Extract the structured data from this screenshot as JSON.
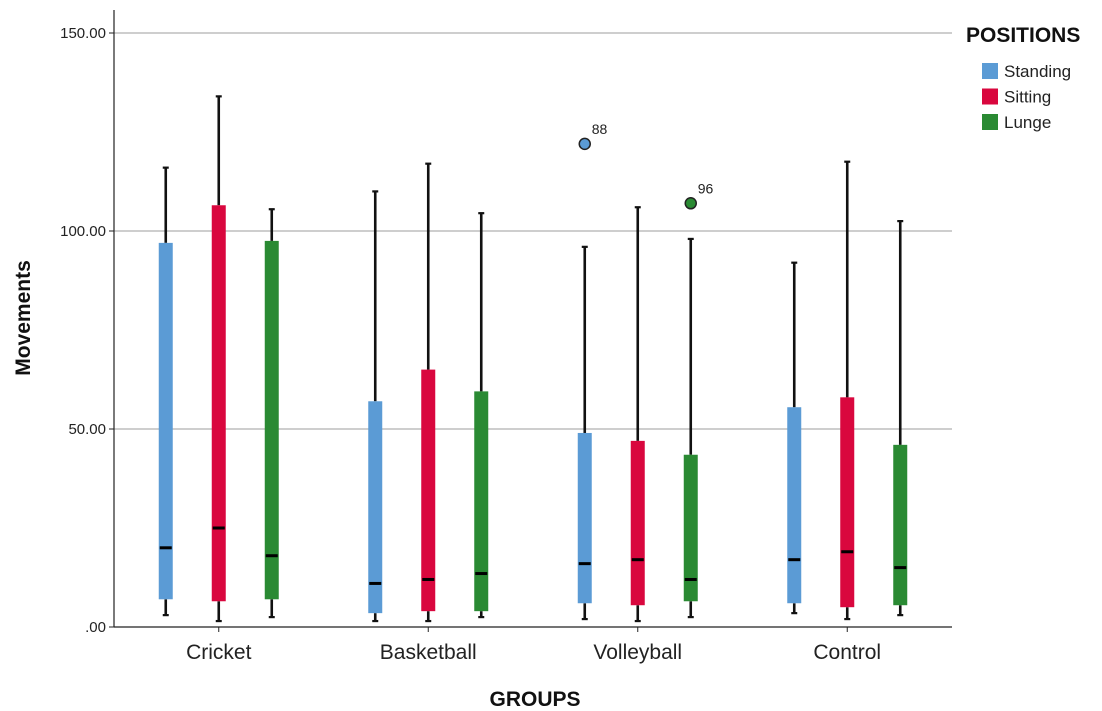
{
  "chart_data": {
    "type": "boxplot",
    "xlabel": "GROUPS",
    "ylabel": "Movements",
    "ylim": [
      0,
      150
    ],
    "yticks": [
      ".00",
      "50.00",
      "100.00",
      "150.00"
    ],
    "ytick_values": [
      0,
      50,
      100,
      150
    ],
    "grid": "horizontal",
    "categories": [
      "Cricket",
      "Basketball",
      "Volleyball",
      "Control"
    ],
    "legend": {
      "title": "POSITIONS",
      "placement": "top-right"
    },
    "series": [
      {
        "name": "Standing",
        "color": "#5b9bd5",
        "boxes": [
          {
            "min": 3,
            "q1": 7,
            "median": 20,
            "q3": 97,
            "max": 116
          },
          {
            "min": 1.5,
            "q1": 3.5,
            "median": 11,
            "q3": 57,
            "max": 110
          },
          {
            "min": 2,
            "q1": 6,
            "median": 16,
            "q3": 49,
            "max": 96
          },
          {
            "min": 3.5,
            "q1": 6,
            "median": 17,
            "q3": 55.5,
            "max": 92
          }
        ],
        "outliers": [
          {
            "category": "Volleyball",
            "value": 122,
            "label": "88"
          }
        ]
      },
      {
        "name": "Sitting",
        "color": "#d9073e",
        "boxes": [
          {
            "min": 1.5,
            "q1": 6.5,
            "median": 25,
            "q3": 106.5,
            "max": 134
          },
          {
            "min": 1.5,
            "q1": 4,
            "median": 12,
            "q3": 65,
            "max": 117
          },
          {
            "min": 1.5,
            "q1": 5.5,
            "median": 17,
            "q3": 47,
            "max": 106
          },
          {
            "min": 2,
            "q1": 5,
            "median": 19,
            "q3": 58,
            "max": 117.5
          }
        ],
        "outliers": []
      },
      {
        "name": "Lunge",
        "color": "#2a8a33",
        "boxes": [
          {
            "min": 2.5,
            "q1": 7,
            "median": 18,
            "q3": 97.5,
            "max": 105.5
          },
          {
            "min": 2.5,
            "q1": 4,
            "median": 13.5,
            "q3": 59.5,
            "max": 104.5
          },
          {
            "min": 2.5,
            "q1": 6.5,
            "median": 12,
            "q3": 43.5,
            "max": 98
          },
          {
            "min": 3,
            "q1": 5.5,
            "median": 15,
            "q3": 46,
            "max": 102.5
          }
        ],
        "outliers": [
          {
            "category": "Volleyball",
            "value": 107,
            "label": "96"
          }
        ]
      }
    ]
  }
}
